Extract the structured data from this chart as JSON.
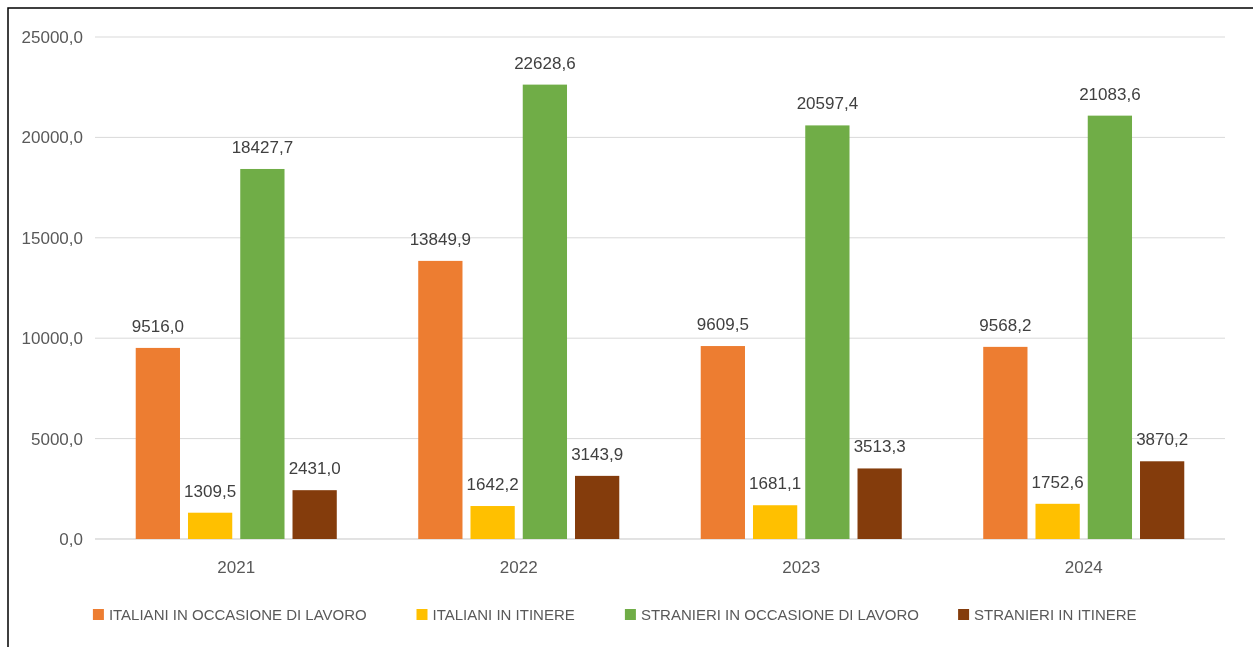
{
  "chart_data": {
    "type": "bar",
    "categories": [
      "2021",
      "2022",
      "2023",
      "2024"
    ],
    "series": [
      {
        "name": "ITALIANI IN OCCASIONE DI LAVORO",
        "color": "#ed7d31",
        "values": [
          9516.0,
          13849.9,
          9609.5,
          9568.2
        ],
        "value_labels": [
          "9516,0",
          "13849,9",
          "9609,5",
          "9568,2"
        ]
      },
      {
        "name": "ITALIANI IN ITINERE",
        "color": "#ffc000",
        "values": [
          1309.5,
          1642.2,
          1681.1,
          1752.6
        ],
        "value_labels": [
          "1309,5",
          "1642,2",
          "1681,1",
          "1752,6"
        ]
      },
      {
        "name": "STRANIERI IN OCCASIONE DI LAVORO",
        "color": "#70ad47",
        "values": [
          18427.7,
          22628.6,
          20597.4,
          21083.6
        ],
        "value_labels": [
          "18427,7",
          "22628,6",
          "20597,4",
          "21083,6"
        ]
      },
      {
        "name": "STRANIERI IN ITINERE",
        "color": "#843c0c",
        "values": [
          2431.0,
          3143.9,
          3513.3,
          3870.2
        ],
        "value_labels": [
          "2431,0",
          "3143,9",
          "3513,3",
          "3870,2"
        ]
      }
    ],
    "ylim": [
      0,
      25000
    ],
    "yticks": [
      {
        "value": 0,
        "label": "0,0"
      },
      {
        "value": 5000,
        "label": "5000,0"
      },
      {
        "value": 10000,
        "label": "10000,0"
      },
      {
        "value": 15000,
        "label": "15000,0"
      },
      {
        "value": 20000,
        "label": "20000,0"
      },
      {
        "value": 25000,
        "label": "25000,0"
      }
    ],
    "grid": "y",
    "legend": "bottom"
  }
}
